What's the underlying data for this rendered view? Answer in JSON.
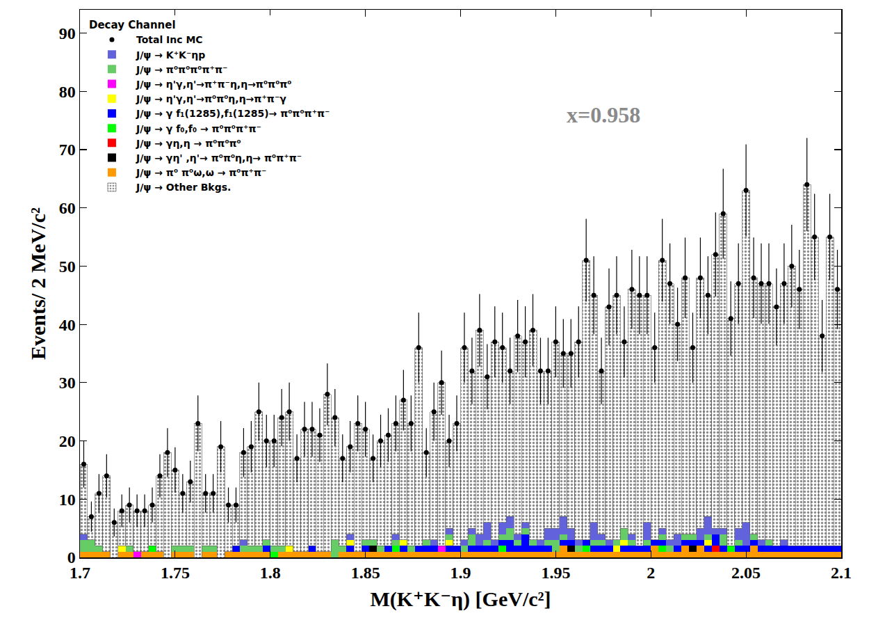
{
  "chart_data": {
    "type": "histogram",
    "stacked": true,
    "grid": false,
    "legend": "top-left",
    "legend_title": "Decay Channel",
    "x_label": "M(K⁺K⁻η) [GeV/c²]",
    "y_label": "Events/ 2 MeV/c²",
    "xlim": [
      1.7,
      2.1
    ],
    "xticks": [
      1.7,
      1.75,
      1.8,
      1.85,
      1.9,
      1.95,
      2,
      2.05,
      2.1
    ],
    "ylim": [
      0,
      94
    ],
    "yticks": [
      0,
      10,
      20,
      30,
      40,
      50,
      60,
      70,
      80,
      90
    ],
    "annotations": [
      {
        "text": "x=0.958",
        "x": 1.975,
        "y": 76
      }
    ],
    "bins": [
      1.7,
      1.704,
      1.708,
      1.712,
      1.716,
      1.72,
      1.724,
      1.728,
      1.732,
      1.736,
      1.74,
      1.744,
      1.748,
      1.752,
      1.756,
      1.76,
      1.764,
      1.768,
      1.772,
      1.776,
      1.78,
      1.784,
      1.788,
      1.792,
      1.796,
      1.8,
      1.804,
      1.808,
      1.812,
      1.816,
      1.82,
      1.824,
      1.828,
      1.832,
      1.836,
      1.84,
      1.844,
      1.848,
      1.852,
      1.856,
      1.86,
      1.864,
      1.868,
      1.872,
      1.876,
      1.88,
      1.884,
      1.888,
      1.892,
      1.896,
      1.9,
      1.904,
      1.908,
      1.912,
      1.916,
      1.92,
      1.924,
      1.928,
      1.932,
      1.936,
      1.94,
      1.944,
      1.948,
      1.952,
      1.956,
      1.96,
      1.964,
      1.968,
      1.972,
      1.976,
      1.98,
      1.984,
      1.988,
      1.992,
      1.996,
      2,
      2.004,
      2.008,
      2.012,
      2.016,
      2.02,
      2.024,
      2.028,
      2.032,
      2.036,
      2.04,
      2.044,
      2.048,
      2.052,
      2.056,
      2.06,
      2.064,
      2.068,
      2.072,
      2.076,
      2.08,
      2.084,
      2.088,
      2.092,
      2.096,
      2.1
    ],
    "series": [
      {
        "name": "Total Inc MC",
        "type": "scatter",
        "marker": "circle",
        "color": "#000000",
        "values": [
          16,
          7,
          11,
          14,
          6,
          8,
          9,
          8,
          8,
          9,
          14,
          18,
          15,
          11,
          13,
          23,
          11,
          11,
          19,
          9,
          9,
          18,
          19,
          25,
          20,
          20,
          24,
          25,
          17,
          22,
          22,
          21,
          28,
          24,
          17,
          19,
          23,
          22,
          17,
          20,
          21,
          23,
          27,
          23,
          36,
          18,
          25,
          30,
          20,
          23,
          36,
          32,
          39,
          31,
          37,
          36,
          32,
          38,
          37,
          39,
          32,
          32,
          37,
          35,
          35,
          37,
          51,
          45,
          32,
          43,
          45,
          37,
          46,
          45,
          45,
          36,
          51,
          47,
          40,
          48,
          36,
          48,
          45,
          52,
          59,
          41,
          47,
          63,
          48,
          47,
          47,
          43,
          47,
          50,
          46,
          64,
          55,
          38,
          55,
          46
        ],
        "errors": [
          4.0,
          2.6,
          3.3,
          3.7,
          2.4,
          2.8,
          3.0,
          2.8,
          2.8,
          3.0,
          3.7,
          4.2,
          3.9,
          3.3,
          3.6,
          4.8,
          3.3,
          3.3,
          4.4,
          3.0,
          3.0,
          4.2,
          4.4,
          5.0,
          4.5,
          4.5,
          4.9,
          5.0,
          4.1,
          4.7,
          4.7,
          4.6,
          5.3,
          4.9,
          4.1,
          4.4,
          4.8,
          4.7,
          4.1,
          4.5,
          4.6,
          4.8,
          5.2,
          4.8,
          6.0,
          4.2,
          5.0,
          5.5,
          4.5,
          4.8,
          6.0,
          5.7,
          6.2,
          5.6,
          6.1,
          6.0,
          5.7,
          6.2,
          6.1,
          6.2,
          5.7,
          5.7,
          6.1,
          5.9,
          5.9,
          6.1,
          7.1,
          6.7,
          5.7,
          6.6,
          6.7,
          6.1,
          6.8,
          6.7,
          6.7,
          6.0,
          7.1,
          6.9,
          6.3,
          6.9,
          6.0,
          6.9,
          6.7,
          7.2,
          7.7,
          6.4,
          6.9,
          7.9,
          6.9,
          6.9,
          6.9,
          6.6,
          6.9,
          7.1,
          6.8,
          8.0,
          7.4,
          6.2,
          7.4,
          6.8
        ]
      },
      {
        "name": "J/ψ → K⁺K⁻ηp",
        "type": "bar",
        "color": "#6262dc",
        "values": [
          1,
          0,
          0,
          0,
          0,
          0,
          0,
          0,
          0,
          0,
          0,
          0,
          0,
          0,
          0,
          0,
          0,
          0,
          0,
          0,
          0,
          1,
          0,
          0,
          0,
          0,
          0,
          0,
          0,
          0,
          0,
          0,
          0,
          0,
          0,
          1,
          0,
          0,
          0,
          0,
          0,
          1,
          0,
          0,
          0,
          0,
          1,
          0,
          1,
          0,
          1,
          1,
          2,
          3,
          1,
          2,
          2,
          1,
          1,
          0,
          1,
          2,
          2,
          3,
          2,
          1,
          0,
          3,
          1,
          1,
          0,
          0,
          1,
          0,
          3,
          0,
          1,
          1,
          2,
          0,
          0,
          2,
          3,
          1,
          1,
          0,
          2,
          4,
          0,
          1,
          0,
          0,
          1,
          0,
          0,
          0,
          0,
          0,
          0,
          0
        ]
      },
      {
        "name": "J/ψ → π⁰π⁰π⁰π⁺π⁻",
        "type": "bar",
        "color": "#66cc66",
        "values": [
          2,
          2,
          1,
          0,
          0,
          0,
          1,
          0,
          0,
          0,
          0,
          0,
          1,
          1,
          1,
          0,
          1,
          1,
          0,
          0,
          0,
          1,
          1,
          1,
          1,
          1,
          1,
          0,
          0,
          0,
          0,
          0,
          0,
          3,
          1,
          0,
          0,
          1,
          1,
          1,
          0,
          1,
          0,
          1,
          0,
          1,
          0,
          0,
          1,
          0,
          1,
          2,
          0,
          1,
          0,
          1,
          2,
          1,
          1,
          1,
          0,
          1,
          2,
          1,
          0,
          1,
          0,
          1,
          1,
          0,
          1,
          2,
          1,
          0,
          1,
          0,
          1,
          1,
          0,
          1,
          1,
          0,
          1,
          0,
          2,
          0,
          1,
          0,
          1,
          0,
          1,
          0,
          0,
          0,
          0,
          0,
          0,
          0,
          0,
          0
        ]
      },
      {
        "name": "J/ψ → η'γ,η'→π⁺π⁻η,η→π⁰π⁰π⁰",
        "type": "bar",
        "color": "#ff00ff",
        "values": [
          0,
          0,
          0,
          0,
          0,
          0,
          0,
          1,
          0,
          0,
          0,
          0,
          0,
          0,
          0,
          0,
          0,
          0,
          0,
          0,
          0,
          0,
          0,
          0,
          0,
          0,
          0,
          0,
          0,
          0,
          0,
          0,
          0,
          0,
          0,
          0,
          0,
          0,
          0,
          0,
          0,
          0,
          0,
          0,
          0,
          0,
          0,
          1,
          0,
          0,
          0,
          0,
          0,
          0,
          0,
          0,
          0,
          0,
          0,
          0,
          0,
          0,
          0,
          0,
          0,
          0,
          0,
          0,
          0,
          0,
          0,
          0,
          0,
          0,
          0,
          0,
          0,
          0,
          0,
          0,
          0,
          0,
          0,
          0,
          0,
          0,
          0,
          0,
          0,
          0,
          0,
          0,
          0,
          0,
          0,
          0,
          0,
          0,
          0,
          0
        ]
      },
      {
        "name": "J/ψ → η'γ,η'→π⁰π⁰η,η→π⁺π⁻γ",
        "type": "bar",
        "color": "#ffff00",
        "values": [
          0,
          0,
          0,
          0,
          0,
          1,
          0,
          0,
          0,
          0,
          0,
          0,
          0,
          0,
          0,
          0,
          0,
          0,
          0,
          0,
          0,
          0,
          0,
          0,
          0,
          0,
          0,
          1,
          0,
          0,
          0,
          0,
          0,
          0,
          0,
          1,
          0,
          0,
          0,
          0,
          0,
          0,
          1,
          0,
          0,
          0,
          0,
          0,
          1,
          0,
          0,
          0,
          0,
          0,
          0,
          0,
          0,
          0,
          0,
          0,
          0,
          0,
          0,
          0,
          0,
          0,
          0,
          0,
          0,
          0,
          1,
          1,
          0,
          0,
          0,
          0,
          0,
          0,
          0,
          0,
          0,
          0,
          1,
          0,
          0,
          0,
          0,
          0,
          0,
          0,
          0,
          0,
          0,
          0,
          0,
          0,
          0,
          0,
          0,
          0
        ]
      },
      {
        "name": "J/ψ → γ f₁(1285),f₁(1285)→ π⁰π⁰π⁺π⁻",
        "type": "bar",
        "color": "#0000ff",
        "values": [
          0,
          0,
          0,
          0,
          0,
          0,
          0,
          0,
          0,
          0,
          0,
          0,
          0,
          0,
          0,
          0,
          0,
          0,
          0,
          0,
          1,
          0,
          0,
          0,
          1,
          0,
          0,
          0,
          0,
          0,
          1,
          0,
          0,
          0,
          0,
          1,
          0,
          1,
          0,
          0,
          1,
          0,
          1,
          0,
          1,
          1,
          1,
          0,
          1,
          1,
          0,
          1,
          1,
          1,
          1,
          1,
          2,
          1,
          3,
          1,
          1,
          1,
          0,
          1,
          1,
          0,
          1,
          1,
          1,
          1,
          0,
          1,
          1,
          1,
          1,
          1,
          1,
          0,
          1,
          1,
          1,
          1,
          1,
          2,
          1,
          0,
          1,
          1,
          1,
          1,
          1,
          1,
          1,
          1,
          1,
          1,
          1,
          1,
          1,
          1
        ]
      },
      {
        "name": "J/ψ → γ f₀,f₀ → π⁰π⁰π⁺π⁻",
        "type": "bar",
        "color": "#00ff00",
        "values": [
          0,
          0,
          0,
          0,
          0,
          0,
          0,
          0,
          0,
          1,
          0,
          0,
          0,
          0,
          0,
          0,
          0,
          0,
          0,
          0,
          0,
          0,
          0,
          0,
          0,
          1,
          0,
          0,
          0,
          0,
          0,
          0,
          0,
          0,
          0,
          0,
          0,
          0,
          0,
          0,
          0,
          1,
          0,
          0,
          0,
          0,
          0,
          0,
          0,
          0,
          0,
          0,
          0,
          0,
          0,
          1,
          0,
          0,
          0,
          0,
          0,
          0,
          0,
          0,
          0,
          0,
          1,
          0,
          0,
          0,
          0,
          0,
          0,
          0,
          0,
          0,
          1,
          0,
          0,
          0,
          0,
          0,
          0,
          0,
          0,
          1,
          0,
          0,
          0,
          0,
          0,
          0,
          0,
          0,
          0,
          0,
          0,
          0,
          0,
          0
        ]
      },
      {
        "name": "J/ψ → γη,η → π⁰π⁰π⁰",
        "type": "bar",
        "color": "#ff0000",
        "values": [
          0,
          0,
          0,
          0,
          0,
          0,
          0,
          0,
          0,
          0,
          0,
          0,
          0,
          0,
          0,
          0,
          0,
          0,
          0,
          0,
          0,
          0,
          0,
          0,
          0,
          0,
          0,
          0,
          0,
          0,
          0,
          0,
          0,
          0,
          0,
          0,
          0,
          0,
          0,
          0,
          0,
          0,
          0,
          0,
          0,
          0,
          0,
          0,
          0,
          0,
          0,
          0,
          0,
          0,
          0,
          0,
          0,
          0,
          0,
          0,
          0,
          0,
          0,
          0,
          0,
          0,
          0,
          0,
          0,
          0,
          0,
          0,
          0,
          0,
          0,
          0,
          0,
          0,
          0,
          0,
          0,
          0,
          0,
          1,
          0,
          0,
          0,
          0,
          0,
          0,
          0,
          0,
          0,
          0,
          0,
          0,
          0,
          0,
          0,
          0
        ]
      },
      {
        "name": "J/ψ → γη' ,η'→ π⁰π⁰η,η→ π⁰π⁺π⁻",
        "type": "bar",
        "color": "#000000",
        "values": [
          0,
          0,
          0,
          0,
          0,
          0,
          0,
          0,
          0,
          0,
          0,
          0,
          0,
          0,
          0,
          0,
          0,
          0,
          0,
          0,
          0,
          0,
          0,
          0,
          0,
          0,
          0,
          0,
          0,
          0,
          0,
          0,
          0,
          0,
          0,
          0,
          0,
          0,
          1,
          0,
          0,
          0,
          0,
          0,
          0,
          0,
          0,
          0,
          0,
          0,
          0,
          0,
          0,
          0,
          0,
          0,
          0,
          0,
          0,
          0,
          0,
          0,
          0,
          0,
          1,
          0,
          0,
          0,
          0,
          0,
          0,
          0,
          0,
          0,
          0,
          0,
          0,
          0,
          0,
          0,
          1,
          0,
          0,
          0,
          0,
          0,
          0,
          0,
          0,
          0,
          0,
          0,
          0,
          0,
          0,
          0,
          0,
          0,
          0,
          0
        ]
      },
      {
        "name": "J/ψ → π⁰ π⁰ω,ω → π⁰π⁺π⁻",
        "type": "bar",
        "color": "#ff9900",
        "values": [
          1,
          1,
          1,
          1,
          0,
          1,
          1,
          0,
          1,
          1,
          1,
          0,
          1,
          1,
          1,
          0,
          1,
          1,
          0,
          1,
          1,
          1,
          1,
          1,
          1,
          0,
          1,
          1,
          1,
          1,
          1,
          1,
          1,
          0,
          1,
          1,
          1,
          1,
          1,
          1,
          1,
          1,
          1,
          1,
          1,
          1,
          1,
          1,
          1,
          1,
          1,
          1,
          1,
          1,
          1,
          1,
          1,
          1,
          1,
          1,
          1,
          1,
          1,
          2,
          1,
          1,
          1,
          1,
          1,
          1,
          1,
          1,
          1,
          1,
          1,
          2,
          1,
          1,
          1,
          2,
          1,
          2,
          1,
          1,
          1,
          1,
          1,
          1,
          2,
          1,
          1,
          1,
          1,
          1,
          1,
          1,
          1,
          1,
          1,
          1
        ]
      },
      {
        "name": "J/ψ → Other Bkgs.",
        "type": "bar",
        "color": "#8c8c8c",
        "marker": "dots",
        "values": [
          12,
          4,
          9,
          13,
          6,
          6,
          7,
          7,
          7,
          7,
          13,
          18,
          13,
          9,
          11,
          23,
          9,
          9,
          19,
          8,
          7,
          15,
          17,
          23,
          17,
          18,
          22,
          23,
          16,
          21,
          20,
          20,
          27,
          21,
          15,
          15,
          22,
          19,
          14,
          18,
          19,
          19,
          24,
          21,
          34,
          15,
          22,
          28,
          15,
          21,
          33,
          27,
          35,
          25,
          34,
          30,
          25,
          34,
          31,
          36,
          29,
          27,
          32,
          28,
          30,
          34,
          48,
          39,
          28,
          40,
          42,
          32,
          42,
          43,
          39,
          33,
          46,
          44,
          36,
          44,
          32,
          43,
          38,
          47,
          54,
          39,
          42,
          57,
          44,
          44,
          44,
          41,
          44,
          48,
          44,
          62,
          53,
          36,
          53,
          44
        ]
      }
    ]
  }
}
